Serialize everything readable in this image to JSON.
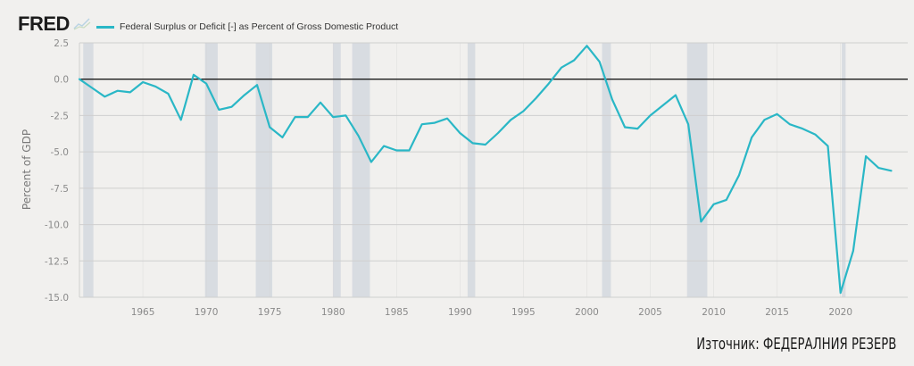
{
  "header": {
    "logo": "FRED",
    "logo_icon": "line-chart-icon",
    "legend_label": "Federal Surplus or Deficit [-] as Percent of Gross Domestic Product"
  },
  "source": "Източник: ФЕДЕРАЛНИЯ РЕЗЕРВ",
  "colors": {
    "line": "#2ab7c6",
    "recession": "#d3d8de",
    "grid": "#cfcfcf",
    "zero_line": "#1a1a1a",
    "background": "#f1f0ee"
  },
  "chart_data": {
    "type": "line",
    "title": "Federal Surplus or Deficit [-] as Percent of Gross Domestic Product",
    "xlabel": "",
    "ylabel": "Percent of GDP",
    "xlim": [
      1960,
      2025.3
    ],
    "ylim": [
      -15.0,
      2.5
    ],
    "grid": true,
    "legend_position": "top-left",
    "x_ticks": [
      1965,
      1970,
      1975,
      1980,
      1985,
      1990,
      1995,
      2000,
      2005,
      2010,
      2015,
      2020
    ],
    "x_tick_labels": [
      "1965",
      "1970",
      "1975",
      "1980",
      "1985",
      "1990",
      "1995",
      "2000",
      "2005",
      "2010",
      "2015",
      "2020"
    ],
    "y_ticks": [
      2.5,
      0.0,
      -2.5,
      -5.0,
      -7.5,
      -10.0,
      -12.5,
      -15.0
    ],
    "y_tick_labels": [
      "2.5",
      "0.0",
      "-2.5",
      "-5.0",
      "-7.5",
      "-10.0",
      "-12.5",
      "-15.0"
    ],
    "recessions": [
      [
        1960.3,
        1961.1
      ],
      [
        1969.9,
        1970.9
      ],
      [
        1973.9,
        1975.2
      ],
      [
        1980.0,
        1980.6
      ],
      [
        1981.5,
        1982.9
      ],
      [
        1990.6,
        1991.2
      ],
      [
        2001.2,
        2001.9
      ],
      [
        2007.9,
        2009.5
      ],
      [
        2020.1,
        2020.4
      ]
    ],
    "series": [
      {
        "name": "Federal Surplus or Deficit [-] as Percent of Gross Domestic Product",
        "x": [
          1960,
          1961,
          1962,
          1963,
          1964,
          1965,
          1966,
          1967,
          1968,
          1969,
          1970,
          1971,
          1972,
          1973,
          1974,
          1975,
          1976,
          1977,
          1978,
          1979,
          1980,
          1981,
          1982,
          1983,
          1984,
          1985,
          1986,
          1987,
          1988,
          1989,
          1990,
          1991,
          1992,
          1993,
          1994,
          1995,
          1996,
          1997,
          1998,
          1999,
          2000,
          2001,
          2002,
          2003,
          2004,
          2005,
          2006,
          2007,
          2008,
          2009,
          2010,
          2011,
          2012,
          2013,
          2014,
          2015,
          2016,
          2017,
          2018,
          2019,
          2020,
          2021,
          2022,
          2023,
          2024
        ],
        "values": [
          0.0,
          -0.6,
          -1.2,
          -0.8,
          -0.9,
          -0.2,
          -0.5,
          -1.0,
          -2.8,
          0.3,
          -0.3,
          -2.1,
          -1.9,
          -1.1,
          -0.4,
          -3.3,
          -4.0,
          -2.6,
          -2.6,
          -1.6,
          -2.6,
          -2.5,
          -3.9,
          -5.7,
          -4.6,
          -4.9,
          -4.9,
          -3.1,
          -3.0,
          -2.7,
          -3.7,
          -4.4,
          -4.5,
          -3.7,
          -2.8,
          -2.2,
          -1.3,
          -0.3,
          0.8,
          1.3,
          2.3,
          1.2,
          -1.4,
          -3.3,
          -3.4,
          -2.5,
          -1.8,
          -1.1,
          -3.1,
          -9.8,
          -8.6,
          -8.3,
          -6.6,
          -4.0,
          -2.8,
          -2.4,
          -3.1,
          -3.4,
          -3.8,
          -4.6,
          -14.7,
          -11.8,
          -5.3,
          -6.1,
          -6.3
        ]
      }
    ]
  }
}
